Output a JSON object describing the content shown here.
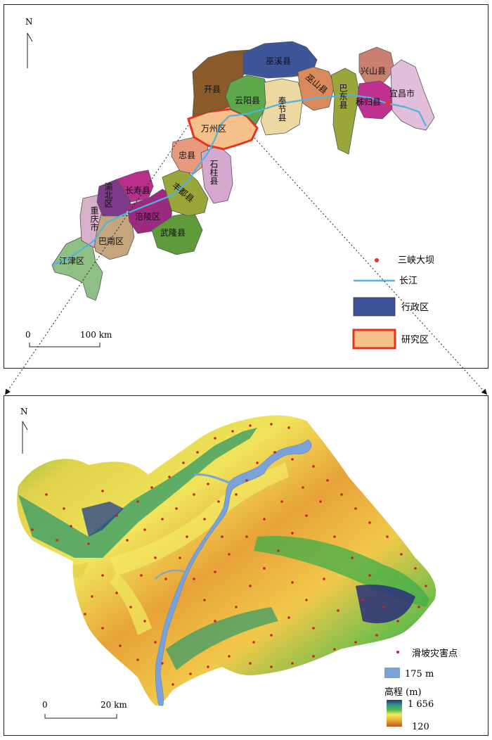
{
  "north_label": "N",
  "top_map": {
    "regions": {
      "wuxi": "巫溪县",
      "kai": "开县",
      "yunyang": "云阳县",
      "fengjie": "奉节县",
      "wushan": "巫山县",
      "badong": "巴东县",
      "xingshan": "兴山县",
      "zigui": "秭归县",
      "yichang": "宜昌市",
      "wanzhou": "万州区",
      "zhong": "忠县",
      "shizhu": "石柱县",
      "fengdu": "丰都县",
      "changshou": "长寿县",
      "yubei": "渝北区",
      "chongqing": "重庆市",
      "banan": "巴南区",
      "fuling": "涪陵区",
      "wulong": "武隆县",
      "jiangjin": "江津区"
    },
    "scale_zero": "0",
    "scale_label": "100 km",
    "legend": {
      "dam": "三峡大坝",
      "river": "长江",
      "admin": "行政区",
      "study": "研究区"
    }
  },
  "bottom_map": {
    "scale_zero": "0",
    "scale_label": "20 km",
    "legend": {
      "landslide": "滑坡灾害点",
      "water_level": "175 m",
      "elev_title": "高程 (m)",
      "elev_max": "1 656",
      "elev_min": "120"
    }
  },
  "colors": {
    "river": "#4fb3e0",
    "admin": "#3e559a",
    "study_fill": "#f6c08a",
    "study_border": "#e5331c",
    "dam": "#e3322a",
    "landslide": "#cc2222",
    "reservoir": "#7aa2d8"
  }
}
